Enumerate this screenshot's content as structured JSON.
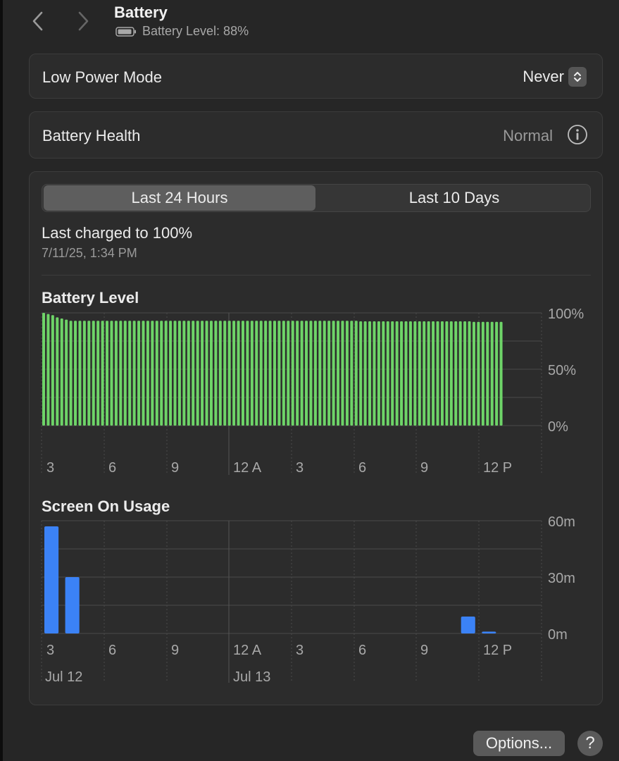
{
  "header": {
    "title": "Battery",
    "subtitle": "Battery Level: 88%",
    "back_icon": "chevron-left-icon",
    "forward_icon": "chevron-right-icon",
    "battery_icon": "battery-icon"
  },
  "low_power_mode": {
    "label": "Low Power Mode",
    "value": "Never"
  },
  "battery_health": {
    "label": "Battery Health",
    "value": "Normal"
  },
  "tabs": [
    "Last 24 Hours",
    "Last 10 Days"
  ],
  "selected_tab": "Last 24 Hours",
  "last_charged": {
    "label": "Last charged to 100%",
    "time": "7/11/25, 1:34 PM"
  },
  "buttons": {
    "options": "Options...",
    "help": "?"
  },
  "colors": {
    "battery_bar": "#6ed468",
    "usage_bar": "#3b82f6"
  },
  "chart_data": [
    {
      "type": "bar",
      "title": "Battery Level",
      "yaxis": {
        "ticks": [
          "100%",
          "50%",
          "0%"
        ],
        "range": [
          0,
          100
        ],
        "position": "right"
      },
      "xticks": [
        "3",
        "6",
        "9",
        "12 A",
        "3",
        "6",
        "9",
        "12 P"
      ],
      "values": [
        100,
        99,
        98,
        96,
        95,
        94,
        93,
        93,
        93,
        93,
        93,
        93,
        93,
        93,
        93,
        93,
        93,
        93,
        93,
        93,
        93,
        93,
        93,
        93,
        93,
        93,
        93,
        93,
        93,
        93,
        93,
        93,
        93,
        93,
        93,
        93,
        93,
        93,
        93,
        93,
        93,
        93,
        93,
        93,
        93,
        93,
        93,
        93,
        93,
        93,
        93,
        93,
        93,
        93,
        93,
        93,
        93,
        93,
        93,
        93,
        93,
        93,
        93,
        93,
        93,
        93,
        93,
        93,
        93,
        93,
        92.5,
        92.5,
        92.5,
        92.5,
        92.5,
        92.5,
        92.5,
        92.5,
        92.5,
        92.5,
        92.5,
        92.5,
        92.5,
        92.5,
        92.5,
        92.5,
        92.5,
        92.5,
        92.5,
        92.5,
        92.5,
        92.5,
        92.5,
        92.5,
        92.5,
        92,
        92,
        92,
        92,
        92,
        92,
        92
      ],
      "grid": true
    },
    {
      "type": "bar",
      "title": "Screen On Usage",
      "yaxis": {
        "ticks": [
          "60m",
          "30m",
          "0m"
        ],
        "range": [
          0,
          60
        ],
        "position": "right",
        "unit": "minutes"
      },
      "xticks": [
        "3",
        "6",
        "9",
        "12 A",
        "3",
        "6",
        "9",
        "12 P"
      ],
      "date_labels": [
        "Jul 12",
        "Jul 13"
      ],
      "bars": [
        {
          "hour": 0,
          "minutes": 57
        },
        {
          "hour": 1,
          "minutes": 30
        },
        {
          "hour": 20,
          "minutes": 9
        },
        {
          "hour": 21,
          "minutes": 1
        }
      ],
      "grid": true
    }
  ]
}
